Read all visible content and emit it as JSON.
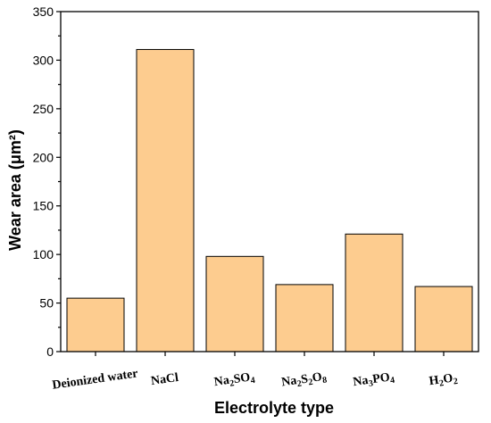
{
  "chart_data": {
    "type": "bar",
    "categories": [
      {
        "main": "Deionized water",
        "parts": [
          {
            "t": "Deionized water",
            "s": false
          }
        ]
      },
      {
        "main": "NaCl",
        "parts": [
          {
            "t": "NaCl",
            "s": false
          }
        ]
      },
      {
        "main": "Na2SO4",
        "parts": [
          {
            "t": "Na",
            "s": false
          },
          {
            "t": "2",
            "s": true
          },
          {
            "t": "SO",
            "s": false
          },
          {
            "t": "4",
            "s": true
          }
        ]
      },
      {
        "main": "Na2S2O8",
        "parts": [
          {
            "t": "Na",
            "s": false
          },
          {
            "t": "2",
            "s": true
          },
          {
            "t": "S",
            "s": false
          },
          {
            "t": "2",
            "s": true
          },
          {
            "t": "O",
            "s": false
          },
          {
            "t": "8",
            "s": true
          }
        ]
      },
      {
        "main": "Na3PO4",
        "parts": [
          {
            "t": "Na",
            "s": false
          },
          {
            "t": "3",
            "s": true
          },
          {
            "t": "PO",
            "s": false
          },
          {
            "t": "4",
            "s": true
          }
        ]
      },
      {
        "main": "H2O2",
        "parts": [
          {
            "t": "H",
            "s": false
          },
          {
            "t": "2",
            "s": true
          },
          {
            "t": "O",
            "s": false
          },
          {
            "t": "2",
            "s": true
          }
        ]
      }
    ],
    "values": [
      55,
      311,
      98,
      69,
      121,
      67
    ],
    "xlabel": "Electrolyte type",
    "ylabel": "Wear area (μm²)",
    "ylim": [
      0,
      350
    ],
    "yticks": [
      0,
      50,
      100,
      150,
      200,
      250,
      300,
      350
    ],
    "bar_color": "#FDCC8F",
    "bar_edge_color": "#000000",
    "grid": false
  }
}
